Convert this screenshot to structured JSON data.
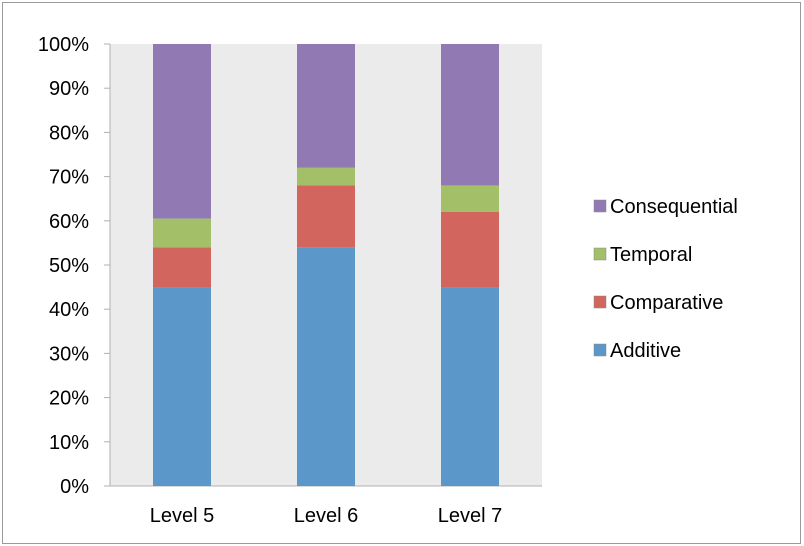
{
  "chart_data": {
    "type": "bar",
    "stacked": true,
    "percent_stacked": true,
    "title": "",
    "xlabel": "",
    "ylabel": "",
    "ylim": [
      0,
      100
    ],
    "y_ticks": [
      "0%",
      "10%",
      "20%",
      "30%",
      "40%",
      "50%",
      "60%",
      "70%",
      "80%",
      "90%",
      "100%"
    ],
    "categories": [
      "Level 5",
      "Level 6",
      "Level 7"
    ],
    "series": [
      {
        "name": "Additive",
        "color": "#5b97c8",
        "values": [
          45,
          54,
          45
        ]
      },
      {
        "name": "Comparative",
        "color": "#d2665e",
        "values": [
          9,
          14,
          17
        ]
      },
      {
        "name": "Temporal",
        "color": "#a3c069",
        "values": [
          6.5,
          4,
          6
        ]
      },
      {
        "name": "Consequential",
        "color": "#917ab3",
        "values": [
          39.5,
          28,
          32
        ]
      }
    ],
    "legend": {
      "position": "right",
      "order": [
        "Consequential",
        "Temporal",
        "Comparative",
        "Additive"
      ]
    },
    "plot_background": "#ebebeb",
    "grid": false
  }
}
